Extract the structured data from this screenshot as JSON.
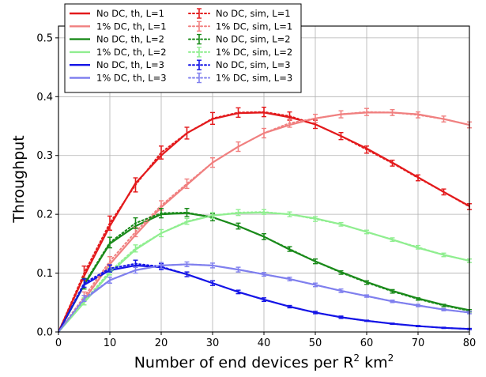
{
  "chart_data": {
    "type": "line",
    "xlabel": "Number of end devices per R",
    "xlabel_sup": "2",
    "xlabel_unit": " km",
    "xlabel_unit_sup": "2",
    "ylabel": "Throughput",
    "xlim": [
      0,
      80
    ],
    "ylim": [
      0,
      0.52
    ],
    "xticks": [
      "0",
      "10",
      "20",
      "30",
      "40",
      "50",
      "60",
      "70",
      "80"
    ],
    "yticks": [
      "0.0",
      "0.1",
      "0.2",
      "0.3",
      "0.4",
      "0.5"
    ],
    "grid": true,
    "legend_position": "top-left",
    "x": [
      0,
      5,
      10,
      15,
      20,
      25,
      30,
      35,
      40,
      45,
      50,
      55,
      60,
      65,
      70,
      75,
      80
    ],
    "series": [
      {
        "name": "No DC, th, L=1",
        "kind": "theory",
        "color": "#e31a1c",
        "values": [
          0,
          0.095,
          0.18,
          0.253,
          0.3,
          0.338,
          0.362,
          0.372,
          0.373,
          0.365,
          0.353,
          0.333,
          0.312,
          0.288,
          0.263,
          0.238,
          0.214
        ]
      },
      {
        "name": "1% DC, th, L=1",
        "kind": "theory",
        "color": "#f08080",
        "values": [
          0,
          0.055,
          0.115,
          0.165,
          0.212,
          0.25,
          0.288,
          0.315,
          0.338,
          0.352,
          0.363,
          0.37,
          0.373,
          0.373,
          0.37,
          0.362,
          0.352
        ]
      },
      {
        "name": "No DC, th, L=2",
        "kind": "theory",
        "color": "#1a8a1a",
        "values": [
          0,
          0.08,
          0.15,
          0.18,
          0.2,
          0.202,
          0.195,
          0.18,
          0.162,
          0.14,
          0.12,
          0.102,
          0.085,
          0.07,
          0.057,
          0.046,
          0.037
        ]
      },
      {
        "name": "1% DC, th, L=2",
        "kind": "theory",
        "color": "#90ee90",
        "values": [
          0,
          0.05,
          0.1,
          0.14,
          0.168,
          0.187,
          0.198,
          0.202,
          0.203,
          0.2,
          0.193,
          0.183,
          0.17,
          0.157,
          0.143,
          0.131,
          0.121
        ]
      },
      {
        "name": "No DC, th, L=3",
        "kind": "theory",
        "color": "#1515e6",
        "values": [
          0,
          0.08,
          0.105,
          0.113,
          0.11,
          0.098,
          0.083,
          0.068,
          0.055,
          0.043,
          0.033,
          0.025,
          0.019,
          0.014,
          0.01,
          0.007,
          0.005
        ]
      },
      {
        "name": "1% DC, th, L=3",
        "kind": "theory",
        "color": "#8080ee",
        "values": [
          0,
          0.055,
          0.088,
          0.105,
          0.113,
          0.115,
          0.113,
          0.106,
          0.098,
          0.09,
          0.08,
          0.07,
          0.061,
          0.052,
          0.045,
          0.038,
          0.033
        ]
      },
      {
        "name": "No DC, sim, L=1",
        "kind": "sim",
        "color": "#e31a1c",
        "values": [
          0,
          0.1,
          0.185,
          0.25,
          0.305,
          0.338,
          0.363,
          0.373,
          0.374,
          0.367,
          0.353,
          0.333,
          0.31,
          0.287,
          0.262,
          0.238,
          0.213
        ],
        "errors": [
          0,
          0.012,
          0.012,
          0.012,
          0.011,
          0.01,
          0.01,
          0.008,
          0.008,
          0.007,
          0.007,
          0.006,
          0.006,
          0.005,
          0.005,
          0.005,
          0.005
        ]
      },
      {
        "name": "1% DC, sim, L=1",
        "kind": "sim",
        "color": "#f08080",
        "values": [
          0,
          0.06,
          0.12,
          0.17,
          0.215,
          0.252,
          0.288,
          0.315,
          0.338,
          0.355,
          0.363,
          0.37,
          0.374,
          0.373,
          0.369,
          0.362,
          0.352
        ],
        "errors": [
          0,
          0.008,
          0.008,
          0.008,
          0.008,
          0.008,
          0.008,
          0.008,
          0.008,
          0.007,
          0.007,
          0.006,
          0.006,
          0.005,
          0.005,
          0.005,
          0.005
        ]
      },
      {
        "name": "No DC, sim, L=2",
        "kind": "sim",
        "color": "#1a8a1a",
        "values": [
          0,
          0.082,
          0.152,
          0.185,
          0.202,
          0.203,
          0.195,
          0.18,
          0.162,
          0.141,
          0.12,
          0.101,
          0.084,
          0.069,
          0.056,
          0.045,
          0.036
        ],
        "errors": [
          0,
          0.009,
          0.009,
          0.009,
          0.008,
          0.007,
          0.006,
          0.005,
          0.005,
          0.004,
          0.004,
          0.003,
          0.003,
          0.003,
          0.002,
          0.002,
          0.002
        ]
      },
      {
        "name": "1% DC, sim, L=2",
        "kind": "sim",
        "color": "#90ee90",
        "values": [
          0,
          0.052,
          0.103,
          0.142,
          0.168,
          0.188,
          0.198,
          0.203,
          0.204,
          0.2,
          0.192,
          0.183,
          0.17,
          0.157,
          0.144,
          0.131,
          0.121
        ],
        "errors": [
          0,
          0.006,
          0.006,
          0.006,
          0.006,
          0.005,
          0.005,
          0.005,
          0.004,
          0.004,
          0.004,
          0.003,
          0.003,
          0.003,
          0.003,
          0.003,
          0.003
        ]
      },
      {
        "name": "No DC, sim, L=3",
        "kind": "sim",
        "color": "#1515e6",
        "values": [
          0,
          0.083,
          0.108,
          0.116,
          0.111,
          0.098,
          0.083,
          0.068,
          0.055,
          0.043,
          0.033,
          0.025,
          0.019,
          0.014,
          0.01,
          0.007,
          0.005
        ],
        "errors": [
          0,
          0.007,
          0.006,
          0.006,
          0.005,
          0.004,
          0.004,
          0.003,
          0.003,
          0.002,
          0.002,
          0.002,
          0.001,
          0.001,
          0.001,
          0.001,
          0.001
        ],
        "markers_from": 1
      },
      {
        "name": "1% DC, sim, L=3",
        "kind": "sim",
        "color": "#8080ee",
        "values": [
          0,
          0.057,
          0.088,
          0.105,
          0.113,
          0.115,
          0.113,
          0.106,
          0.098,
          0.09,
          0.08,
          0.07,
          0.061,
          0.052,
          0.045,
          0.038,
          0.033
        ],
        "errors": [
          0,
          0.005,
          0.005,
          0.005,
          0.005,
          0.004,
          0.004,
          0.004,
          0.003,
          0.003,
          0.003,
          0.003,
          0.002,
          0.002,
          0.002,
          0.002,
          0.002
        ]
      }
    ],
    "legend": {
      "columns": [
        [
          "No DC, th, L=1",
          "1% DC, th, L=1",
          "No DC, th, L=2",
          "1% DC, th, L=2",
          "No DC, th, L=3",
          "1% DC, th, L=3"
        ],
        [
          "No DC, sim, L=1",
          "1% DC, sim, L=1",
          "No DC, sim, L=2",
          "1% DC, sim, L=2",
          "No DC, sim, L=3",
          "1% DC, sim, L=3"
        ]
      ]
    }
  }
}
